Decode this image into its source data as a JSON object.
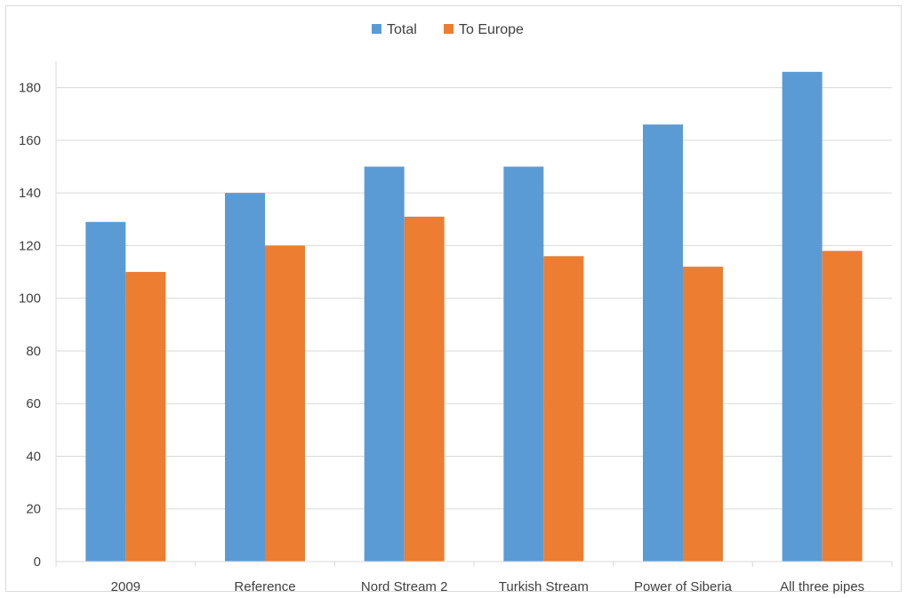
{
  "chart_data": {
    "type": "bar",
    "title": "",
    "xlabel": "",
    "ylabel": "",
    "categories": [
      "2009",
      "Reference",
      "Nord Stream 2",
      "Turkish Stream",
      "Power of Siberia",
      "All three pipes"
    ],
    "series": [
      {
        "name": "Total",
        "color": "#5b9bd5",
        "values": [
          129,
          140,
          150,
          150,
          166,
          186
        ]
      },
      {
        "name": "To Europe",
        "color": "#ed7d31",
        "values": [
          110,
          120,
          131,
          116,
          112,
          118
        ]
      }
    ],
    "ylim": [
      0,
      190
    ],
    "yticks": [
      0,
      20,
      40,
      60,
      80,
      100,
      120,
      140,
      160,
      180
    ],
    "grid": true,
    "legend_position": "top-center"
  }
}
